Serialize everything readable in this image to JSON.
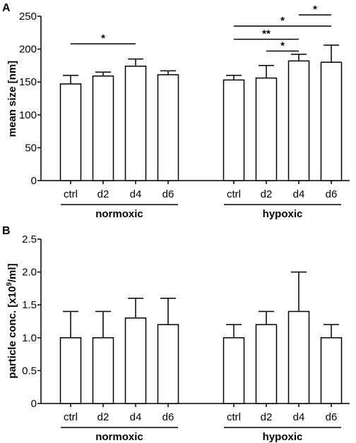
{
  "chart_data": [
    {
      "panel_label": "A",
      "type": "bar",
      "ylabel": "mean size [nm]",
      "ylim": [
        0,
        250
      ],
      "yticks": [
        "0",
        "50",
        "100",
        "150",
        "200",
        "250"
      ],
      "groups": [
        {
          "name": "normoxic",
          "categories": [
            "ctrl",
            "d2",
            "d4",
            "d6"
          ],
          "values": [
            147,
            159,
            174,
            161
          ],
          "errors": [
            13,
            6,
            11,
            6
          ]
        },
        {
          "name": "hypoxic",
          "categories": [
            "ctrl",
            "d2",
            "d4",
            "d6"
          ],
          "values": [
            153,
            156,
            182,
            180
          ],
          "errors": [
            7,
            19,
            10,
            26
          ]
        }
      ],
      "significance": [
        {
          "group": 0,
          "from": 0,
          "to": 2,
          "label": "*",
          "level": 208
        },
        {
          "group": 1,
          "from": 2,
          "to": 3,
          "label": "*",
          "level": 252
        },
        {
          "group": 1,
          "from": 0,
          "to": 3,
          "label": "*",
          "level": 235
        },
        {
          "group": 1,
          "from": 0,
          "to": 2,
          "label": "**",
          "level": 215
        },
        {
          "group": 1,
          "from": 1,
          "to": 2,
          "label": "*",
          "level": 197
        }
      ]
    },
    {
      "panel_label": "B",
      "type": "bar",
      "ylabel_parts": [
        "particle conc. [x10",
        "9",
        "/ml]"
      ],
      "ylim": [
        0,
        2.5
      ],
      "yticks": [
        "0",
        "0.5",
        "1.0",
        "1.5",
        "2.0",
        "2.5"
      ],
      "groups": [
        {
          "name": "normoxic",
          "categories": [
            "ctrl",
            "d2",
            "d4",
            "d6"
          ],
          "values": [
            1.0,
            1.0,
            1.3,
            1.2
          ],
          "errors": [
            0.4,
            0.4,
            0.3,
            0.4
          ]
        },
        {
          "name": "hypoxic",
          "categories": [
            "ctrl",
            "d2",
            "d4",
            "d6"
          ],
          "values": [
            1.0,
            1.2,
            1.4,
            1.0
          ],
          "errors": [
            0.2,
            0.2,
            0.6,
            0.2
          ]
        }
      ],
      "significance": []
    }
  ]
}
